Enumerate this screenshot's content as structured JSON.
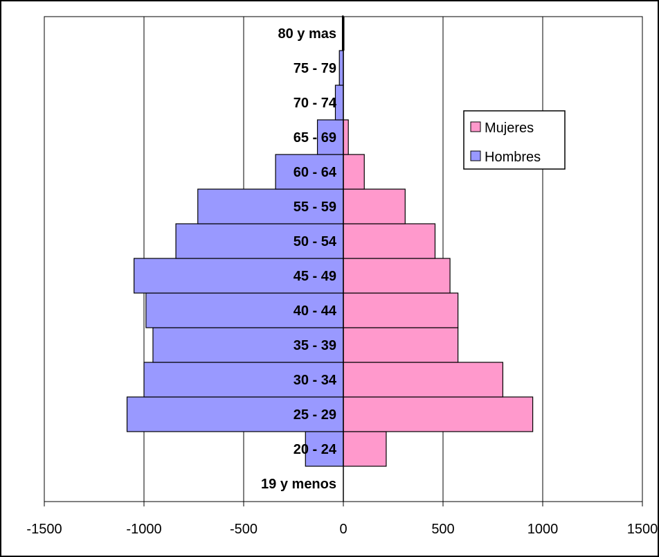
{
  "chart_data": {
    "type": "bar",
    "orientation": "horizontal",
    "subtype": "population-pyramid",
    "title": "",
    "xlabel": "",
    "ylabel": "",
    "categories": [
      "19 y menos",
      "20 - 24",
      "25 - 29",
      "30 - 34",
      "35 - 39",
      "40 - 44",
      "45 - 49",
      "50 - 54",
      "55 - 59",
      "60 - 64",
      "65 - 69",
      "70 - 74",
      "75 - 79",
      "80 y mas"
    ],
    "series": [
      {
        "name": "Hombres",
        "color": "#9999ff",
        "values": [
          0,
          -190,
          -1085,
          -1000,
          -955,
          -990,
          -1050,
          -840,
          -730,
          -340,
          -130,
          -40,
          -20,
          -5
        ]
      },
      {
        "name": "Mujeres",
        "color": "#ff99cc",
        "values": [
          0,
          215,
          950,
          800,
          575,
          575,
          535,
          460,
          310,
          105,
          25,
          0,
          0,
          0
        ]
      }
    ],
    "xlim": [
      -1500,
      1500
    ],
    "xticks": [
      "-1500",
      "-1000",
      "-500",
      "0",
      "500",
      "1000",
      "1500"
    ],
    "grid": "vertical",
    "legend": {
      "position": "right",
      "entries": [
        "Mujeres",
        "Hombres"
      ]
    }
  }
}
